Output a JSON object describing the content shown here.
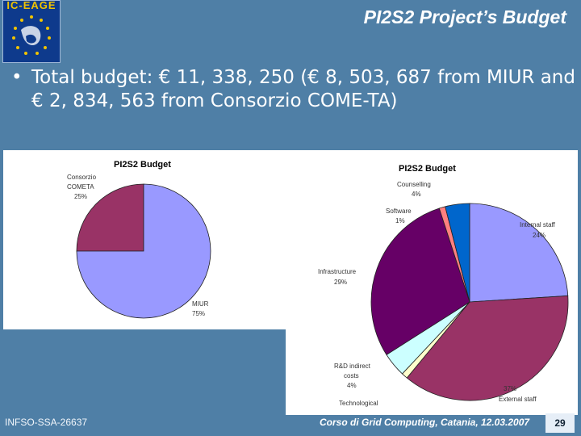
{
  "slide": {
    "logo_text": "IC-EAGE",
    "title": "PI2S2 Project’s Budget",
    "bullet": "Total budget: € 11, 338, 250 (€ 8, 503, 687 from MIUR and € 2, 834, 563 from Consorzio COME-TA)",
    "footer_left": "INFSO-SSA-26637",
    "footer_center": "Corso di Grid Computing, Catania, 12.03.2007",
    "page_number": "29"
  },
  "colors": {
    "background": "#4f7fa6",
    "logo_bg": "#0e3a8c",
    "logo_stars": "#f1c400"
  },
  "chart_data": [
    {
      "type": "pie",
      "title": "PI2S2 Budget",
      "slices": [
        {
          "label": "Consorzio COMETA",
          "value": 25,
          "value_label": "25%",
          "color": "#993366"
        },
        {
          "label": "MIUR",
          "value": 75,
          "value_label": "75%",
          "color": "#9999ff"
        }
      ]
    },
    {
      "type": "pie",
      "title": "PI2S2 Budget",
      "slices": [
        {
          "label": "Internal staff",
          "value": 24,
          "value_label": "24%",
          "color": "#9999ff"
        },
        {
          "label": "External staff",
          "value": 37,
          "value_label": "37%",
          "color": "#993366"
        },
        {
          "label": "Technological",
          "value": 1,
          "value_label": "",
          "color": "#ffffcc"
        },
        {
          "label": "R&D indirect costs",
          "value": 4,
          "value_label": "4%",
          "color": "#ccffff"
        },
        {
          "label": "Infrastructure",
          "value": 29,
          "value_label": "29%",
          "color": "#660066"
        },
        {
          "label": "Software",
          "value": 1,
          "value_label": "1%",
          "color": "#ff8080"
        },
        {
          "label": "Counselling",
          "value": 4,
          "value_label": "4%",
          "color": "#0066cc"
        }
      ]
    }
  ]
}
